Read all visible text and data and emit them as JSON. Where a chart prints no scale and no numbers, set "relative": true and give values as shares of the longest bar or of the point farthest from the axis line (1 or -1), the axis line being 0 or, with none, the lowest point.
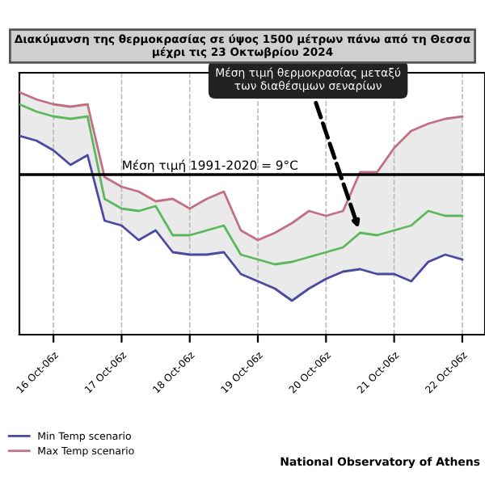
{
  "chart_data": {
    "type": "line",
    "relative": true,
    "title": "Διακύμανση της θερμοκρασίας σε ύψος 1500 μέτρων πάνω από τη Θεσσα\nμέχρι τις 23 Οκτωβρίου 2024",
    "x": [
      "2024-10-15T18:00",
      "2024-10-16T00:00",
      "2024-10-16T06:00",
      "2024-10-16T12:00",
      "2024-10-16T18:00",
      "2024-10-17T00:00",
      "2024-10-17T06:00",
      "2024-10-17T12:00",
      "2024-10-17T18:00",
      "2024-10-18T00:00",
      "2024-10-18T06:00",
      "2024-10-18T12:00",
      "2024-10-18T18:00",
      "2024-10-19T00:00",
      "2024-10-19T06:00",
      "2024-10-19T12:00",
      "2024-10-19T18:00",
      "2024-10-20T00:00",
      "2024-10-20T06:00",
      "2024-10-20T12:00",
      "2024-10-20T18:00",
      "2024-10-21T00:00",
      "2024-10-21T06:00",
      "2024-10-21T12:00",
      "2024-10-21T18:00",
      "2024-10-22T00:00",
      "2024-10-22T06:00"
    ],
    "series": [
      {
        "name": "Min Temp scenario",
        "color": "#4a4aa0",
        "values": [
          0.82,
          0.8,
          0.76,
          0.7,
          0.74,
          0.47,
          0.45,
          0.39,
          0.43,
          0.34,
          0.33,
          0.33,
          0.34,
          0.25,
          0.22,
          0.19,
          0.14,
          0.19,
          0.23,
          0.26,
          0.27,
          0.25,
          0.25,
          0.22,
          0.3,
          0.33,
          0.31
        ]
      },
      {
        "name": "Max Temp scenario",
        "color": "#c07080",
        "values": [
          1.0,
          0.97,
          0.95,
          0.94,
          0.95,
          0.65,
          0.61,
          0.59,
          0.55,
          0.56,
          0.52,
          0.56,
          0.59,
          0.43,
          0.39,
          0.42,
          0.46,
          0.51,
          0.49,
          0.51,
          0.67,
          0.67,
          0.77,
          0.84,
          0.87,
          0.89,
          0.9
        ]
      },
      {
        "color": "#5cb85c",
        "values": [
          0.95,
          0.92,
          0.9,
          0.89,
          0.9,
          0.56,
          0.52,
          0.51,
          0.53,
          0.41,
          0.41,
          0.43,
          0.45,
          0.33,
          0.31,
          0.29,
          0.3,
          0.32,
          0.34,
          0.36,
          0.42,
          0.41,
          0.43,
          0.45,
          0.51,
          0.49,
          0.49
        ],
        "lower": [
          0.82,
          0.8,
          0.76,
          0.7,
          0.74,
          0.47,
          0.45,
          0.39,
          0.43,
          0.34,
          0.33,
          0.33,
          0.34,
          0.25,
          0.22,
          0.19,
          0.14,
          0.19,
          0.23,
          0.26,
          0.27,
          0.25,
          0.25,
          0.22,
          0.3,
          0.33,
          0.31
        ],
        "upper": [
          1.0,
          0.97,
          0.95,
          0.94,
          0.95,
          0.65,
          0.61,
          0.59,
          0.55,
          0.56,
          0.52,
          0.56,
          0.59,
          0.43,
          0.39,
          0.42,
          0.46,
          0.51,
          0.49,
          0.51,
          0.67,
          0.67,
          0.77,
          0.84,
          0.87,
          0.89,
          0.9
        ]
      }
    ],
    "xlim": [
      "2024-10-15T18:00",
      "2024-10-22T14:00"
    ],
    "xticks": [
      {
        "value": "2024-10-16T06:00",
        "label": "16 Oct-06z"
      },
      {
        "value": "2024-10-17T06:00",
        "label": "17 Oct-06z"
      },
      {
        "value": "2024-10-18T06:00",
        "label": "18 Oct-06z"
      },
      {
        "value": "2024-10-19T06:00",
        "label": "19 Oct-06z"
      },
      {
        "value": "2024-10-20T06:00",
        "label": "20 Oct-06z"
      },
      {
        "value": "2024-10-21T06:00",
        "label": "21 Oct-06z"
      },
      {
        "value": "2024-10-22T06:00",
        "label": "22 Oct-06z"
      }
    ],
    "ref_lines": [
      {
        "axis": "y",
        "value": 0.66,
        "color": "#000000"
      }
    ],
    "annotations": [
      {
        "text": "Μέση τιμή θερμοκρασίας μεταξύ\nτων διαθέσιμων σεναρίων",
        "x": "2024-10-20T18:00",
        "y": 0.42
      },
      "Μέση τιμή 1991-2020 = 9°C",
      "National Observatory of Athens"
    ],
    "grid": "x",
    "legend": "bottom left",
    "line_style": "solid",
    "marker": "none"
  }
}
